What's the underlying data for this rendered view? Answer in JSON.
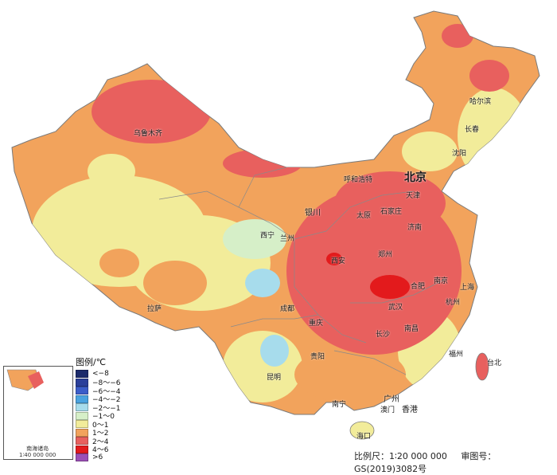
{
  "legend": {
    "title": "图例/℃",
    "items": [
      {
        "label": "<−8",
        "color": "#1b2a6b"
      },
      {
        "label": "−8～−6",
        "color": "#2a3f9a"
      },
      {
        "label": "−6～−4",
        "color": "#3b5dc9"
      },
      {
        "label": "−4～−2",
        "color": "#4aa3e0"
      },
      {
        "label": "−2～−1",
        "color": "#a7dcec"
      },
      {
        "label": "−1～0",
        "color": "#d6efc8"
      },
      {
        "label": "0～1",
        "color": "#f2ec9a"
      },
      {
        "label": "1～2",
        "color": "#f2a35c"
      },
      {
        "label": "2～4",
        "color": "#e8605e"
      },
      {
        "label": "4～6",
        "color": "#e31a1c"
      },
      {
        "label": ">6",
        "color": "#9b4fb5"
      }
    ]
  },
  "inset": {
    "label_line1": "南海诸岛",
    "label_line2": "1∶40 000 000"
  },
  "footer": {
    "scale": "比例尺：1∶20 000 000",
    "approval": "审图号：GS(2019)3082号"
  },
  "cities": [
    {
      "name": "北京",
      "size": "big"
    },
    {
      "name": "天津",
      "size": "small"
    },
    {
      "name": "石家庄",
      "size": "small"
    },
    {
      "name": "太原",
      "size": "small"
    },
    {
      "name": "呼和浩特",
      "size": "small"
    },
    {
      "name": "沈阳",
      "size": "small"
    },
    {
      "name": "长春",
      "size": "small"
    },
    {
      "name": "哈尔滨",
      "size": "small"
    },
    {
      "name": "济南",
      "size": "small"
    },
    {
      "name": "郑州",
      "size": "small"
    },
    {
      "name": "西安",
      "size": "small"
    },
    {
      "name": "银川",
      "size": "mid"
    },
    {
      "name": "兰州",
      "size": "small"
    },
    {
      "name": "西宁",
      "size": "small"
    },
    {
      "name": "乌鲁木齐",
      "size": "small"
    },
    {
      "name": "拉萨",
      "size": "small"
    },
    {
      "name": "成都",
      "size": "small"
    },
    {
      "name": "重庆",
      "size": "small"
    },
    {
      "name": "贵阳",
      "size": "small"
    },
    {
      "name": "昆明",
      "size": "small"
    },
    {
      "name": "南宁",
      "size": "small"
    },
    {
      "name": "广州",
      "size": "mid"
    },
    {
      "name": "澳门",
      "size": "small"
    },
    {
      "name": "香港",
      "size": "mid"
    },
    {
      "name": "海口",
      "size": "small"
    },
    {
      "name": "长沙",
      "size": "small"
    },
    {
      "name": "武汉",
      "size": "small"
    },
    {
      "name": "合肥",
      "size": "small"
    },
    {
      "name": "南京",
      "size": "small"
    },
    {
      "name": "上海",
      "size": "small"
    },
    {
      "name": "杭州",
      "size": "small"
    },
    {
      "name": "南昌",
      "size": "small"
    },
    {
      "name": "福州",
      "size": "small"
    },
    {
      "name": "台北",
      "size": "small"
    }
  ]
}
